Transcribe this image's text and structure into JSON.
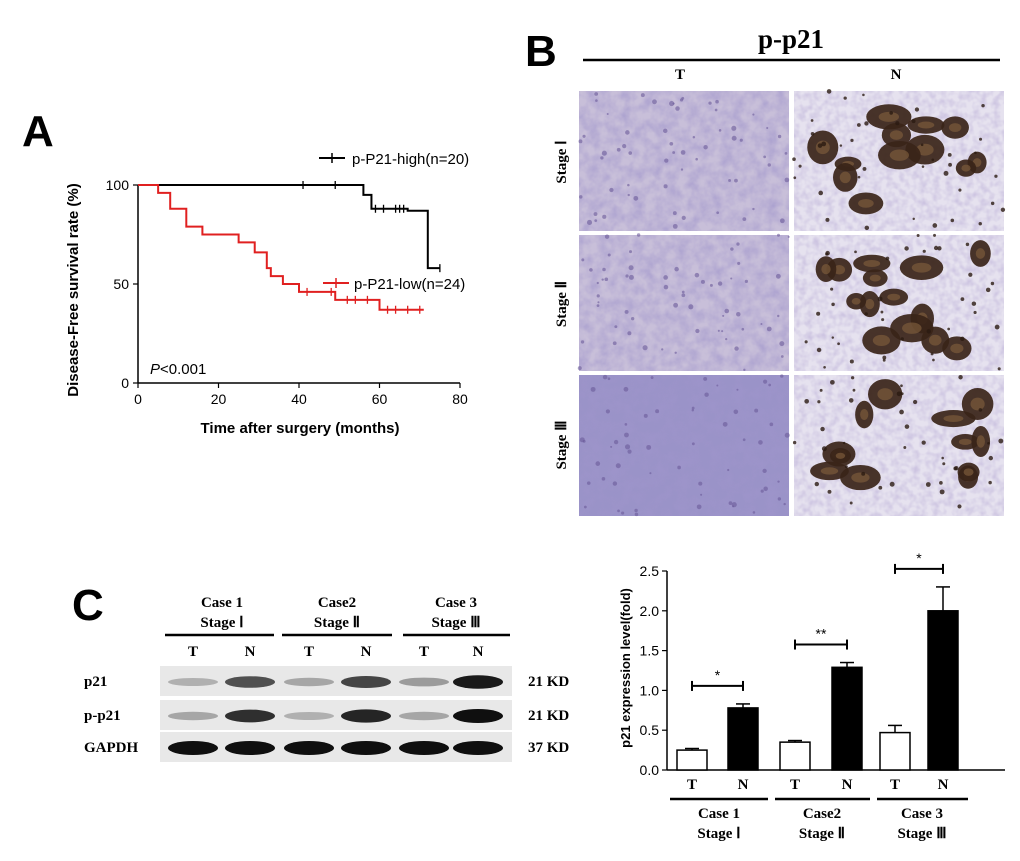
{
  "panels": {
    "A": "A",
    "B": "B",
    "C": "C"
  },
  "colors": {
    "high": "#000000",
    "low": "#e02020",
    "tissue_bg": "#c9c3dc",
    "stain_brown": "#3a2418",
    "stain_purple": "#6a5a9a"
  },
  "panel_a": {
    "ylabel": "Disease-Free survival rate (%)",
    "xlabel": "Time after surgery (months)",
    "pvalue_p": "P",
    "pvalue_rest": "<0.001",
    "legend_high": "p-P21-high(n=20)",
    "legend_low": "p-P21-low(n=24)"
  },
  "panel_b": {
    "title": "p-p21",
    "col_t": "T",
    "col_n": "N",
    "rows": [
      "Stage Ⅰ",
      "Stage Ⅱ",
      "Stage Ⅲ"
    ]
  },
  "panel_c_blot": {
    "cases": [
      {
        "line1": "Case 1",
        "line2": "Stage Ⅰ"
      },
      {
        "line1": "Case2",
        "line2": "Stage Ⅱ"
      },
      {
        "line1": "Case 3",
        "line2": "Stage Ⅲ"
      }
    ],
    "lane_labels": [
      "T",
      "N",
      "T",
      "N",
      "T",
      "N"
    ],
    "proteins": [
      {
        "name": "p21",
        "kd": "21 KD",
        "intensities": [
          0.25,
          0.7,
          0.3,
          0.75,
          0.35,
          0.95
        ]
      },
      {
        "name": "p-p21",
        "kd": "21 KD",
        "intensities": [
          0.3,
          0.85,
          0.25,
          0.9,
          0.3,
          1.0
        ]
      },
      {
        "name": "GAPDH",
        "kd": "37 KD",
        "intensities": [
          1.0,
          1.0,
          1.0,
          1.0,
          1.0,
          1.0
        ]
      }
    ]
  },
  "chart_data": [
    {
      "type": "line",
      "xlabel": "Time after surgery (months)",
      "ylabel": "Disease-Free survival rate (%)",
      "xlim": [
        0,
        80
      ],
      "ylim": [
        0,
        100
      ],
      "xticks": [
        0,
        20,
        40,
        60,
        80
      ],
      "yticks": [
        0,
        50,
        100
      ],
      "legend": "top-right",
      "series": [
        {
          "name": "p-P21-high(n=20)",
          "color": "#000000",
          "steps": [
            [
              0,
              100
            ],
            [
              56,
              100
            ],
            [
              56,
              95
            ],
            [
              58,
              95
            ],
            [
              58,
              88
            ],
            [
              67,
              88
            ],
            [
              67,
              87
            ],
            [
              72,
              87
            ],
            [
              72,
              58
            ],
            [
              75,
              58
            ]
          ],
          "censors": [
            [
              41,
              100
            ],
            [
              49,
              100
            ],
            [
              59,
              88
            ],
            [
              61,
              88
            ],
            [
              64,
              88
            ],
            [
              65,
              88
            ],
            [
              66,
              88
            ],
            [
              75,
              58
            ]
          ]
        },
        {
          "name": "p-P21-low(n=24)",
          "color": "#e02020",
          "steps": [
            [
              0,
              100
            ],
            [
              5,
              100
            ],
            [
              5,
              96
            ],
            [
              8,
              96
            ],
            [
              8,
              88
            ],
            [
              12,
              88
            ],
            [
              12,
              79
            ],
            [
              16,
              79
            ],
            [
              16,
              75
            ],
            [
              25,
              75
            ],
            [
              25,
              71
            ],
            [
              29,
              71
            ],
            [
              29,
              66
            ],
            [
              32,
              66
            ],
            [
              32,
              58
            ],
            [
              33,
              58
            ],
            [
              33,
              54
            ],
            [
              36,
              54
            ],
            [
              36,
              50
            ],
            [
              40,
              50
            ],
            [
              40,
              46
            ],
            [
              49,
              46
            ],
            [
              49,
              42
            ],
            [
              60,
              42
            ],
            [
              60,
              37
            ],
            [
              71,
              37
            ]
          ],
          "censors": [
            [
              42,
              46
            ],
            [
              48,
              46
            ],
            [
              52,
              42
            ],
            [
              54,
              42
            ],
            [
              57,
              42
            ],
            [
              62,
              37
            ],
            [
              64,
              37
            ],
            [
              67,
              37
            ],
            [
              70,
              37
            ]
          ]
        }
      ]
    },
    {
      "type": "bar",
      "ylabel": "p21 expression level(fold)",
      "ylim": [
        0,
        2.5
      ],
      "yticks": [
        "0.0",
        "0.5",
        "1.0",
        "1.5",
        "2.0",
        "2.5"
      ],
      "categories": [
        "T",
        "N",
        "T",
        "N",
        "T",
        "N"
      ],
      "groups": [
        {
          "line1": "Case 1",
          "line2": "Stage Ⅰ"
        },
        {
          "line1": "Case2",
          "line2": "Stage Ⅱ"
        },
        {
          "line1": "Case 3",
          "line2": "Stage Ⅲ"
        }
      ],
      "values": [
        0.25,
        0.78,
        0.35,
        1.29,
        0.47,
        2.0
      ],
      "errors": [
        0.02,
        0.05,
        0.02,
        0.06,
        0.09,
        0.3
      ],
      "fills": [
        "white",
        "black",
        "white",
        "black",
        "white",
        "black"
      ],
      "significance": [
        "*",
        "**",
        "*"
      ]
    }
  ]
}
